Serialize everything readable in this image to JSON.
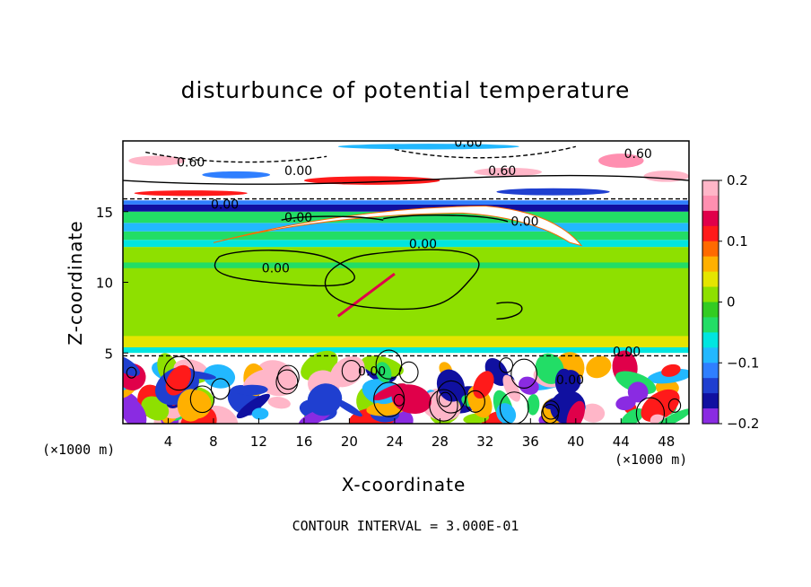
{
  "chart_data": {
    "type": "heatmap",
    "title": "disturbunce of potential temperature",
    "xlabel": "X-coordinate",
    "ylabel": "Z-coordinate",
    "x_unit": "(×1000 m)",
    "y_unit": "(×1000 m)",
    "xlim": [
      0,
      50
    ],
    "ylim": [
      0,
      20
    ],
    "x_ticks": [
      4,
      8,
      12,
      16,
      20,
      24,
      28,
      32,
      36,
      40,
      44,
      48
    ],
    "y_ticks": [
      5,
      10,
      15
    ],
    "colorbar": {
      "range": [
        -0.2,
        0.2
      ],
      "ticks": [
        0.2,
        0.1,
        0,
        -0.1,
        -0.2
      ],
      "tick_labels": [
        "0.2",
        "0.1",
        "0",
        "−0.1",
        "−0.2"
      ],
      "colors": [
        "#8a2be2",
        "#1010a0",
        "#1f3fd0",
        "#2f7fff",
        "#22b8ff",
        "#00e5e0",
        "#22dd66",
        "#33cc22",
        "#8ee000",
        "#e5e500",
        "#ffb000",
        "#ff6a00",
        "#ff1a1a",
        "#e0004a",
        "#ff8fb0",
        "#ffb6c8"
      ]
    },
    "contour_labels": [
      "0.60",
      "0.60",
      "0.00",
      "0.60",
      "0.60",
      "0.00",
      "0.00",
      "0.00",
      "0.00",
      "0.00",
      "0.00",
      "0.00",
      "0.00"
    ],
    "annotation": "CONTOUR INTERVAL = 3.000E-01",
    "layers": [
      {
        "z_range": [
          0,
          4.5
        ],
        "anomaly": "mixed strong (+/-0.2)"
      },
      {
        "z_range": [
          4.5,
          5.0
        ],
        "anomaly": "strong (+)"
      },
      {
        "z_range": [
          5.0,
          12.5
        ],
        "anomaly": "near 0"
      },
      {
        "z_range": [
          12.5,
          15.6
        ],
        "anomaly": "-0.05 to -0.15"
      },
      {
        "z_range": [
          15.6,
          20
        ],
        "anomaly": "strong (+)"
      }
    ],
    "grid": false
  }
}
